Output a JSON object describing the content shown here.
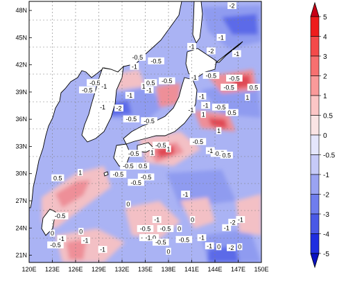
{
  "map": {
    "lon_labels": [
      "120E",
      "123E",
      "126E",
      "129E",
      "132E",
      "135E",
      "138E",
      "141E",
      "144E",
      "147E",
      "150E"
    ],
    "lat_labels": [
      "21N",
      "24N",
      "27N",
      "30N",
      "33N",
      "36N",
      "39N",
      "42N",
      "45N",
      "48N"
    ],
    "contour_labels": [
      {
        "text": "-2",
        "lon": 146.2,
        "lat": 48.5
      },
      {
        "text": "-1",
        "lon": 141.0,
        "lat": 44.0
      },
      {
        "text": "-1",
        "lon": 144.8,
        "lat": 45.0
      },
      {
        "text": "-2",
        "lon": 143.5,
        "lat": 43.5
      },
      {
        "text": "-1",
        "lon": 146.8,
        "lat": 43.2
      },
      {
        "text": "-0.5",
        "lon": 134.0,
        "lat": 42.8
      },
      {
        "text": "-0.5",
        "lon": 136.4,
        "lat": 42.4
      },
      {
        "text": "-1",
        "lon": 133.6,
        "lat": 41.8
      },
      {
        "text": "-0.5",
        "lon": 137.8,
        "lat": 40.2
      },
      {
        "text": "-1",
        "lon": 141.3,
        "lat": 40.6
      },
      {
        "text": "-0.5",
        "lon": 143.5,
        "lat": 40.8
      },
      {
        "text": "-0.5",
        "lon": 146.5,
        "lat": 40.5
      },
      {
        "text": "-0.5",
        "lon": 128.5,
        "lat": 40.0
      },
      {
        "text": "-0.5",
        "lon": 127.5,
        "lat": 39.2
      },
      {
        "text": "-1",
        "lon": 129.7,
        "lat": 39.6
      },
      {
        "text": "-1",
        "lon": 135.5,
        "lat": 39.2
      },
      {
        "text": "1",
        "lon": 134.8,
        "lat": 39.6
      },
      {
        "text": "0.5",
        "lon": 135.7,
        "lat": 40.0
      },
      {
        "text": "-1",
        "lon": 133.0,
        "lat": 38.6
      },
      {
        "text": "-0.5",
        "lon": 145.8,
        "lat": 39.5
      },
      {
        "text": "0.5",
        "lon": 149.0,
        "lat": 39.5
      },
      {
        "text": "-1",
        "lon": 142.3,
        "lat": 38.5
      },
      {
        "text": "1",
        "lon": 148.2,
        "lat": 38.4
      },
      {
        "text": "-1",
        "lon": 142.8,
        "lat": 37.5
      },
      {
        "text": "-0.5",
        "lon": 144.7,
        "lat": 37.3
      },
      {
        "text": "-2",
        "lon": 131.6,
        "lat": 37.2
      },
      {
        "text": "-1",
        "lon": 129.5,
        "lat": 37.3
      },
      {
        "text": "-1",
        "lon": 140.9,
        "lat": 37.0
      },
      {
        "text": "1",
        "lon": 142.5,
        "lat": 36.5
      },
      {
        "text": "0.5",
        "lon": 146.2,
        "lat": 36.7
      },
      {
        "text": "-0.5",
        "lon": 133.2,
        "lat": 36.0
      },
      {
        "text": "-0.5",
        "lon": 135.5,
        "lat": 35.8
      },
      {
        "text": "1",
        "lon": 144.5,
        "lat": 34.7
      },
      {
        "text": "-0.5",
        "lon": 141.8,
        "lat": 33.5
      },
      {
        "text": "-0.5",
        "lon": 137.0,
        "lat": 33.1
      },
      {
        "text": "1",
        "lon": 138.0,
        "lat": 32.7
      },
      {
        "text": "-0.5",
        "lon": 144.5,
        "lat": 32.2
      },
      {
        "text": "-0.5",
        "lon": 133.5,
        "lat": 32.2
      },
      {
        "text": "1",
        "lon": 135.9,
        "lat": 32.3
      },
      {
        "text": "-1",
        "lon": 143.4,
        "lat": 32.5
      },
      {
        "text": "0.5",
        "lon": 145.5,
        "lat": 32.0
      },
      {
        "text": "0.5",
        "lon": 134.7,
        "lat": 30.8
      },
      {
        "text": "-0.5",
        "lon": 132.8,
        "lat": 30.8
      },
      {
        "text": "-0.5",
        "lon": 131.5,
        "lat": 29.9
      },
      {
        "text": "-0.5",
        "lon": 135.1,
        "lat": 29.6
      },
      {
        "text": "-0.5",
        "lon": 133.8,
        "lat": 29.0
      },
      {
        "text": "1",
        "lon": 126.6,
        "lat": 30.1
      },
      {
        "text": "0.5",
        "lon": 123.7,
        "lat": 29.5
      },
      {
        "text": "-1",
        "lon": 140.2,
        "lat": 27.7
      },
      {
        "text": "0",
        "lon": 132.8,
        "lat": 26.6
      },
      {
        "text": "-0.5",
        "lon": 124.0,
        "lat": 25.3
      },
      {
        "text": "0",
        "lon": 123.0,
        "lat": 23.4
      },
      {
        "text": "0",
        "lon": 126.7,
        "lat": 23.6
      },
      {
        "text": "-1",
        "lon": 136.5,
        "lat": 24.9
      },
      {
        "text": "-0.5",
        "lon": 135.0,
        "lat": 23.9
      },
      {
        "text": "-0.5",
        "lon": 137.6,
        "lat": 23.9
      },
      {
        "text": "0",
        "lon": 139.4,
        "lat": 23.9
      },
      {
        "text": "0",
        "lon": 141.1,
        "lat": 24.9
      },
      {
        "text": "-2",
        "lon": 146.3,
        "lat": 24.6
      },
      {
        "text": "-1",
        "lon": 147.3,
        "lat": 24.9
      },
      {
        "text": "-1",
        "lon": 145.5,
        "lat": 24.0
      },
      {
        "text": "-1",
        "lon": 124.2,
        "lat": 22.8
      },
      {
        "text": "-0.5",
        "lon": 123.4,
        "lat": 22.1
      },
      {
        "text": "-1",
        "lon": 134.8,
        "lat": 22.9
      },
      {
        "text": "-1.0",
        "lon": 135.7,
        "lat": 22.9
      },
      {
        "text": "-0.5",
        "lon": 137.0,
        "lat": 22.4
      },
      {
        "text": "-1",
        "lon": 143.3,
        "lat": 22.0
      },
      {
        "text": "-1",
        "lon": 142.3,
        "lat": 22.9
      },
      {
        "text": "-0.5",
        "lon": 140.0,
        "lat": 22.7
      },
      {
        "text": "0",
        "lon": 138.0,
        "lat": 21.4
      },
      {
        "text": "-1",
        "lon": 129.5,
        "lat": 21.6
      },
      {
        "text": "-1",
        "lon": 127.3,
        "lat": 22.6
      },
      {
        "text": "0",
        "lon": 144.5,
        "lat": 21.9
      },
      {
        "text": "-2",
        "lon": 146.1,
        "lat": 21.8
      },
      {
        "text": "0",
        "lon": 147.2,
        "lat": 21.9
      }
    ]
  },
  "colorbar": {
    "labels": [
      "5",
      "4",
      "3",
      "2",
      "1",
      "0.5",
      "0",
      "-0.5",
      "-1",
      "-2",
      "-3",
      "-4",
      "-5"
    ],
    "colors": [
      "#c80016",
      "#ee1c1c",
      "#f44a4a",
      "#f77070",
      "#fa9a9a",
      "#fcc6c6",
      "#fae4e4",
      "#e4e6fc",
      "#c6caf8",
      "#9aa3f2",
      "#6f7ded",
      "#4a59e6",
      "#1f2ee0",
      "#0a12c2"
    ]
  },
  "field_colors": {
    "base": "#aab3f4",
    "mid_blue": "#8f9bf0",
    "deep_blue": "#5c6ae8",
    "light_pink": "#f3c0c5",
    "pink": "#ee8f98",
    "red": "#e04854",
    "land": "#ffffff"
  }
}
